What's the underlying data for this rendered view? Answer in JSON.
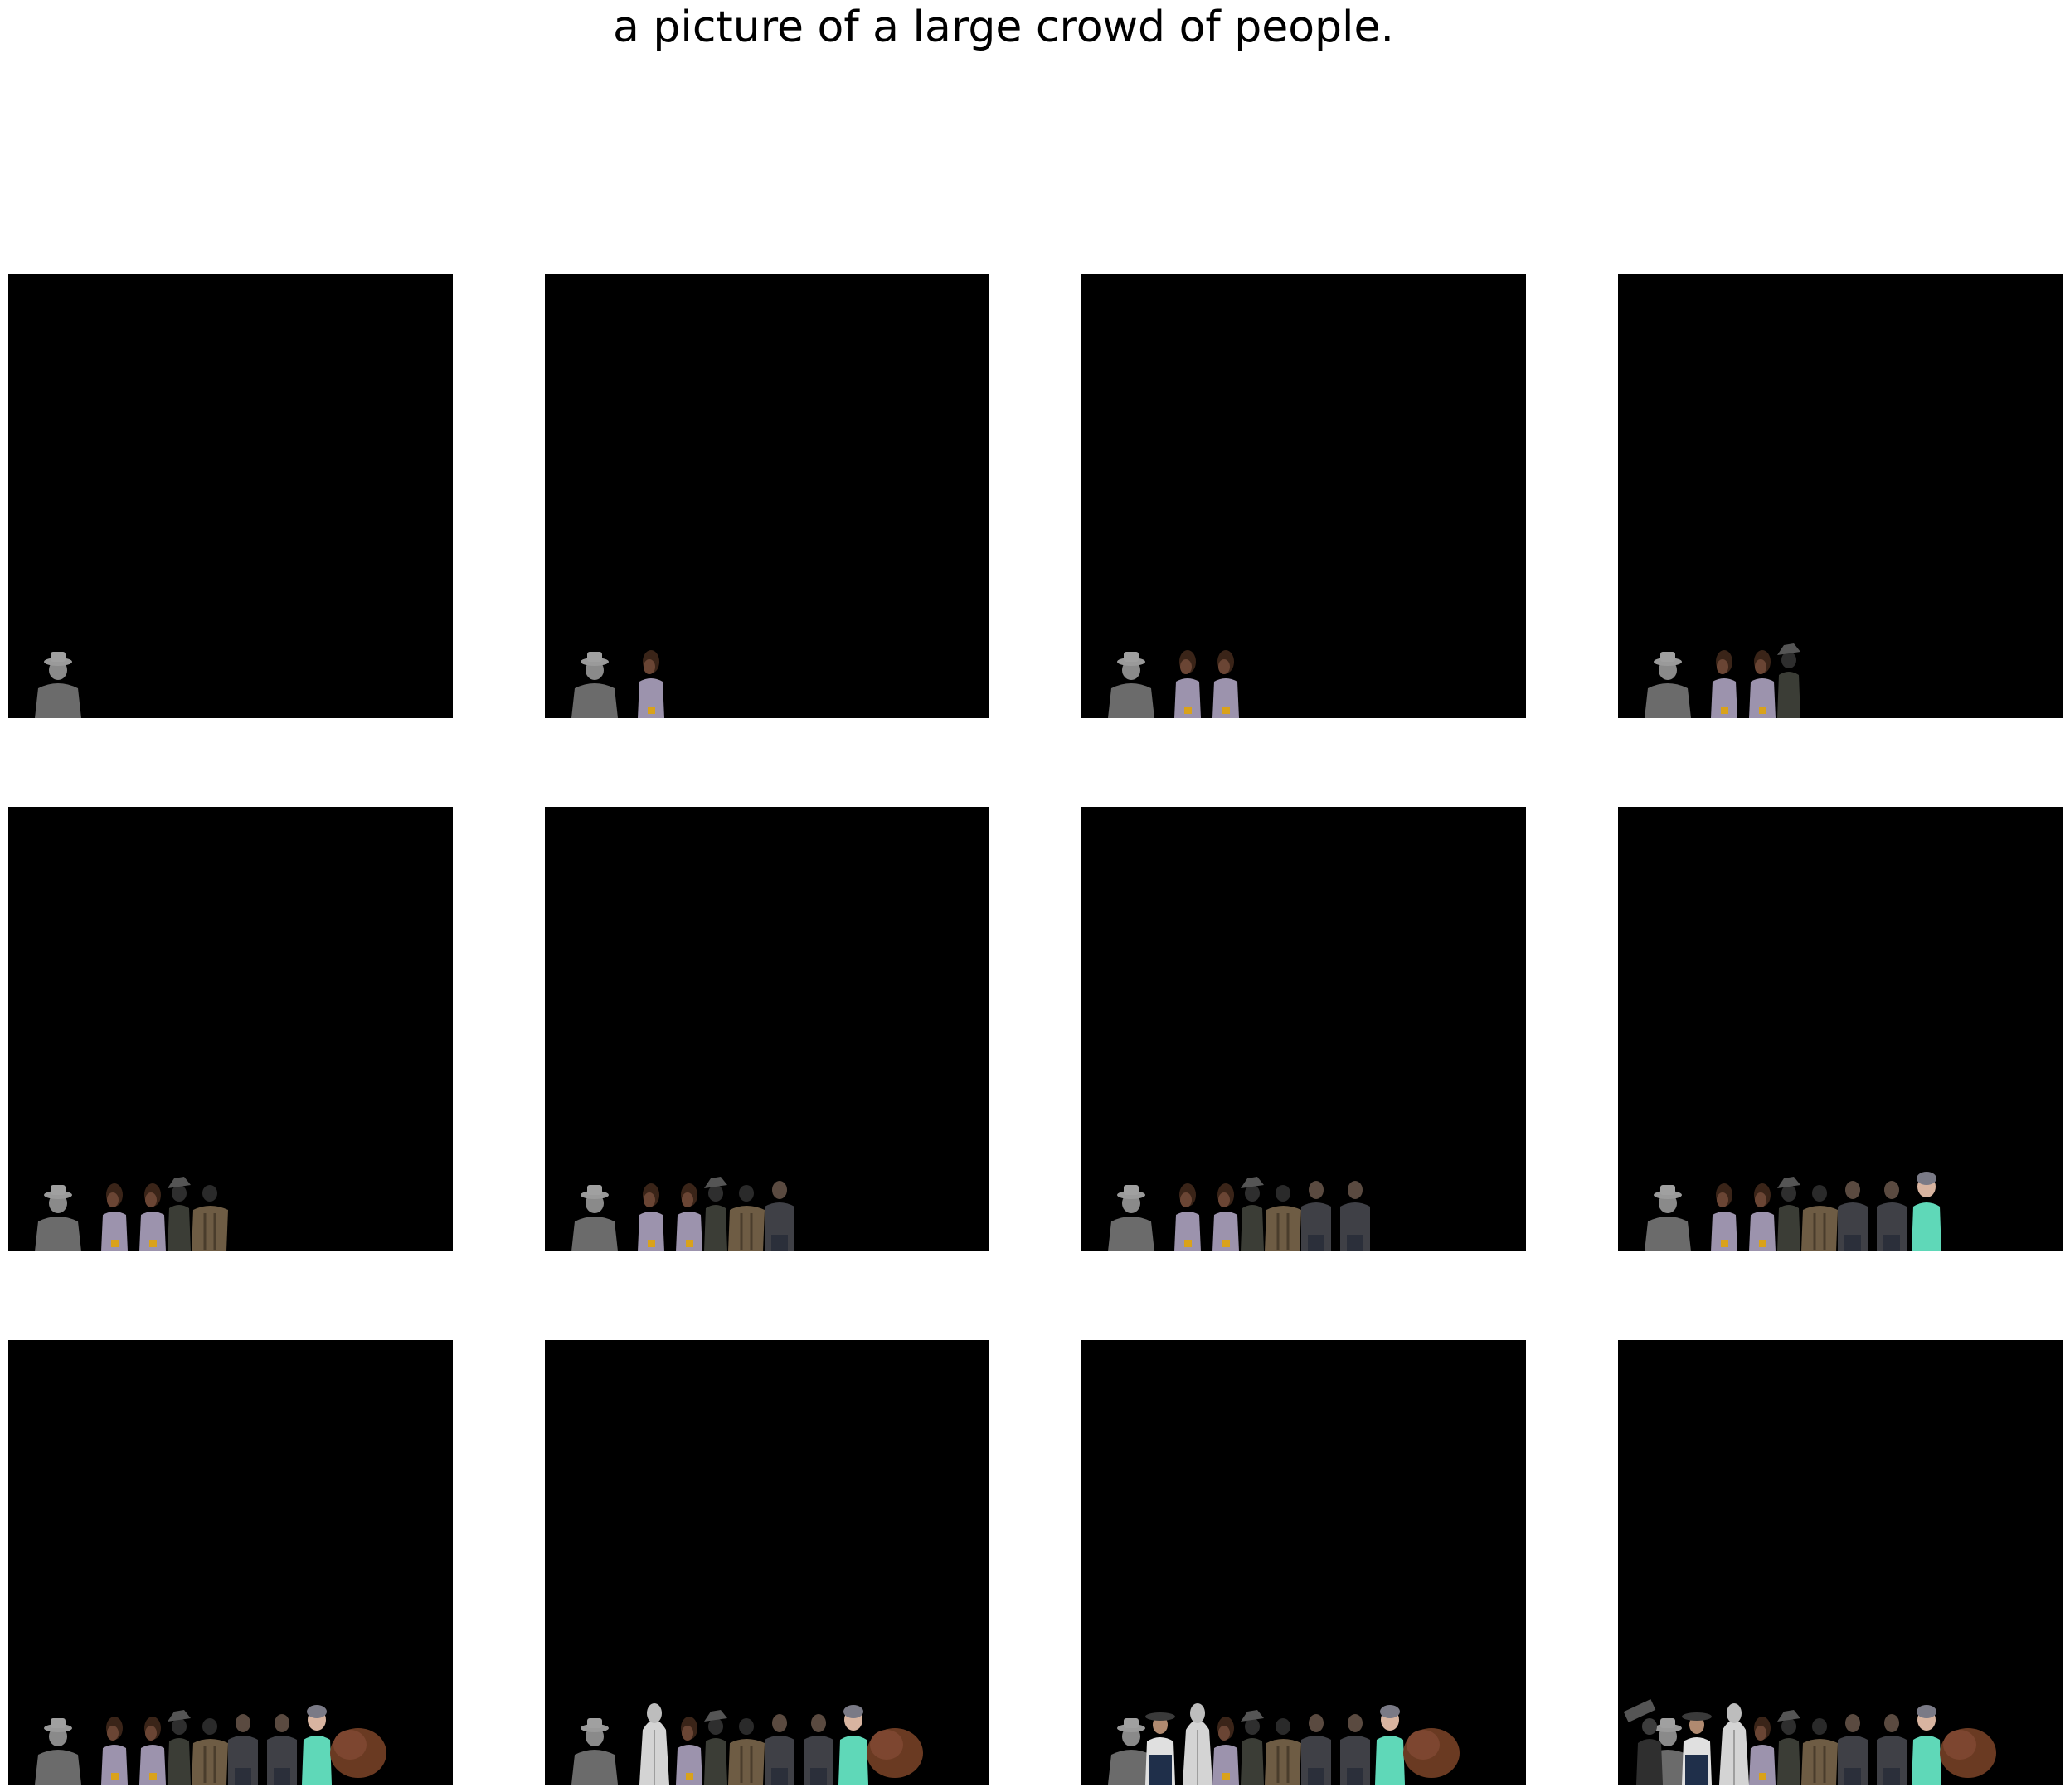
{
  "title": "a picture of a large crowd of people.",
  "grid": {
    "rows": 3,
    "columns": 4
  },
  "panels": [
    {
      "step": 1,
      "figures": [
        "man-grey-hat"
      ]
    },
    {
      "step": 2,
      "figures": [
        "man-grey-hat",
        "woman-dark-hair"
      ]
    },
    {
      "step": 3,
      "figures": [
        "man-grey-hat",
        "woman-dark-hair",
        "woman-dark-hair"
      ]
    },
    {
      "step": 4,
      "figures": [
        "man-grey-hat",
        "woman-dark-hair",
        "woman-dark-hair",
        "person-dark-hat"
      ]
    },
    {
      "step": 5,
      "figures": [
        "man-grey-hat",
        "woman-dark-hair",
        "woman-dark-hair",
        "person-dark-hat",
        "person-brown-coat"
      ]
    },
    {
      "step": 6,
      "figures": [
        "man-grey-hat",
        "woman-dark-hair",
        "woman-dark-hair",
        "person-dark-hat",
        "person-brown-coat",
        "man-dark-shirt"
      ]
    },
    {
      "step": 7,
      "figures": [
        "man-grey-hat",
        "woman-dark-hair",
        "woman-dark-hair",
        "person-dark-hat",
        "person-brown-coat",
        "man-dark-shirt",
        "man-dark-shirt"
      ]
    },
    {
      "step": 8,
      "figures": [
        "man-grey-hat",
        "woman-dark-hair",
        "woman-dark-hair",
        "person-dark-hat",
        "person-brown-coat",
        "man-dark-shirt",
        "man-dark-shirt",
        "woman-teal-outfit"
      ]
    },
    {
      "step": 9,
      "figures": [
        "man-grey-hat",
        "woman-dark-hair",
        "woman-dark-hair",
        "person-dark-hat",
        "person-brown-coat",
        "man-dark-shirt",
        "man-dark-shirt",
        "woman-teal-outfit",
        "brown-hair-shape"
      ]
    },
    {
      "step": 10,
      "figures": [
        "man-grey-hat",
        "person-white-robe",
        "woman-dark-hair",
        "person-dark-hat",
        "person-brown-coat",
        "man-dark-shirt",
        "man-dark-shirt",
        "woman-teal-outfit",
        "brown-hair-shape"
      ]
    },
    {
      "step": 11,
      "figures": [
        "man-grey-hat",
        "man-cowboy-hat",
        "person-white-robe",
        "woman-dark-hair",
        "person-dark-hat",
        "person-brown-coat",
        "man-dark-shirt",
        "man-dark-shirt",
        "woman-teal-outfit",
        "brown-hair-shape"
      ]
    },
    {
      "step": 12,
      "figures": [
        "man-grey-hat",
        "person-with-camera",
        "man-cowboy-hat",
        "person-white-robe",
        "woman-dark-hair",
        "person-dark-hat",
        "person-brown-coat",
        "man-dark-shirt",
        "man-dark-shirt",
        "woman-teal-outfit",
        "brown-hair-shape"
      ]
    }
  ],
  "colors": {
    "page_background": "#ffffff",
    "panel_background": "#000000",
    "title_color": "#000000"
  }
}
